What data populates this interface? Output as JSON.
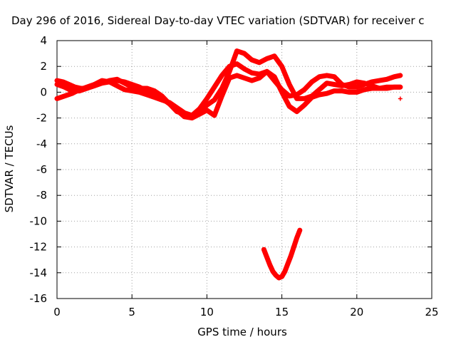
{
  "chart_data": {
    "type": "scatter",
    "title": "Day 296 of 2016, Sidereal Day-to-day VTEC variation (SDTVAR) for receiver c",
    "xlabel": "GPS time / hours",
    "ylabel": "SDTVAR / TECUs",
    "xlim": [
      0,
      25
    ],
    "ylim": [
      -16,
      4
    ],
    "xticks": [
      0,
      5,
      10,
      15,
      20,
      25
    ],
    "yticks": [
      -16,
      -14,
      -12,
      -10,
      -8,
      -6,
      -4,
      -2,
      0,
      2,
      4
    ],
    "grid": true,
    "marker": "+",
    "color": "#ff0000",
    "series": [
      {
        "x": [
          0,
          0.4,
          0.8,
          1.2,
          1.6,
          2.0,
          2.5,
          3.0,
          3.5,
          4.0,
          4.5,
          5.0,
          5.5,
          6.0,
          6.5,
          7.0,
          7.5,
          8.0,
          8.5,
          9.0,
          9.5,
          10.0,
          10.5,
          11.0,
          11.5,
          12.0,
          12.5,
          13.0,
          13.5,
          14.0,
          14.5,
          15.0,
          15.5,
          16.0,
          16.5,
          17.0,
          17.5,
          18.0,
          18.5,
          19.0,
          19.5,
          20.0,
          20.5,
          21.0,
          21.5,
          22.0,
          22.5,
          22.9
        ],
        "y": [
          0.9,
          0.8,
          0.6,
          0.4,
          0.3,
          0.3,
          0.5,
          0.7,
          0.9,
          1.0,
          0.7,
          0.4,
          0.3,
          0.3,
          0.1,
          -0.3,
          -0.9,
          -1.5,
          -1.7,
          -1.8,
          -1.3,
          -0.5,
          0.4,
          1.3,
          2.0,
          2.2,
          1.8,
          1.5,
          1.4,
          1.6,
          0.9,
          0.2,
          -0.3,
          -0.2,
          0.2,
          0.8,
          1.2,
          1.3,
          1.2,
          0.6,
          0.4,
          0.4,
          0.6,
          0.8,
          0.9,
          1.0,
          1.2,
          1.3
        ]
      },
      {
        "x": [
          0,
          0.5,
          1.0,
          1.5,
          2.0,
          2.5,
          3.0,
          3.5,
          4.0,
          4.5,
          5.0,
          5.5,
          6.0,
          6.5,
          7.0,
          7.5,
          8.0,
          8.5,
          9.0,
          9.5,
          10.0,
          10.5,
          11.0,
          11.5,
          12.0,
          12.5,
          13.0,
          13.5,
          14.0,
          14.5,
          15.0,
          15.5,
          16.0,
          16.5,
          17.0,
          17.5,
          18.0,
          18.5,
          19.0,
          19.5,
          20.0,
          20.5,
          21.0,
          21.5,
          22.0,
          22.5,
          22.9
        ],
        "y": [
          0.6,
          0.4,
          0.1,
          0.1,
          0.3,
          0.6,
          0.9,
          0.8,
          0.5,
          0.2,
          0.1,
          0.0,
          -0.2,
          -0.4,
          -0.6,
          -0.8,
          -1.2,
          -1.6,
          -1.8,
          -1.5,
          -1.0,
          -0.6,
          0.3,
          1.6,
          3.2,
          3.0,
          2.5,
          2.3,
          2.6,
          2.8,
          2.0,
          0.6,
          -0.5,
          -0.5,
          -0.3,
          0.2,
          0.7,
          0.6,
          0.5,
          0.6,
          0.8,
          0.7,
          0.5,
          0.3,
          0.3,
          0.4,
          0.4
        ]
      },
      {
        "x": [
          0,
          0.5,
          1.0,
          1.5,
          2.0,
          2.5,
          3.0,
          3.5,
          4.0,
          4.5,
          5.0,
          5.5,
          6.0,
          6.5,
          7.0,
          7.5,
          8.0,
          8.5,
          9.0,
          9.5,
          10.0,
          10.5,
          11.0,
          11.5,
          12.0,
          12.5,
          13.0,
          13.5,
          14.0,
          14.5,
          15.0,
          15.5,
          16.0,
          16.5,
          17.0,
          17.5,
          18.0,
          18.5,
          19.0,
          19.5,
          20.0,
          20.5,
          21.0,
          21.5,
          22.0,
          22.5,
          22.9
        ],
        "y": [
          -0.5,
          -0.3,
          -0.1,
          0.2,
          0.4,
          0.6,
          0.7,
          0.8,
          0.9,
          0.8,
          0.6,
          0.4,
          0.1,
          -0.2,
          -0.5,
          -0.9,
          -1.4,
          -1.9,
          -2.0,
          -1.7,
          -1.4,
          -1.8,
          -0.3,
          1.1,
          1.3,
          1.1,
          0.9,
          1.1,
          1.6,
          1.2,
          0.0,
          -1.1,
          -1.5,
          -1.0,
          -0.4,
          -0.2,
          -0.1,
          0.1,
          0.1,
          0.0,
          0.0,
          0.2,
          0.3,
          0.3,
          0.4,
          0.4,
          0.4
        ]
      },
      {
        "x": [
          13.8,
          14.0,
          14.2,
          14.4,
          14.6,
          14.8,
          15.0,
          15.2,
          15.4,
          15.6,
          15.8,
          16.0,
          16.2
        ],
        "y": [
          -12.2,
          -12.8,
          -13.4,
          -13.9,
          -14.2,
          -14.4,
          -14.3,
          -13.9,
          -13.3,
          -12.7,
          -12.0,
          -11.3,
          -10.7
        ]
      },
      {
        "x": [
          22.9
        ],
        "y": [
          -0.5
        ]
      }
    ]
  }
}
